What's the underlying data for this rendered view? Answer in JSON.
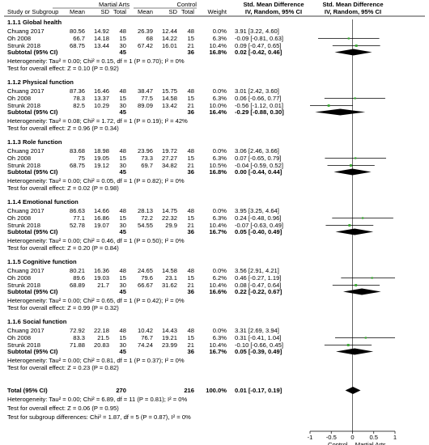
{
  "chart_data": {
    "type": "forest",
    "header": {
      "group1": "Martial Arts",
      "group2": "Control",
      "effect_title": "Std. Mean Difference",
      "effect_sub": "IV, Random, 95% CI",
      "plot_title": "Std. Mean Difference",
      "plot_sub": "IV, Random, 95% CI",
      "col_study": "Study or Subgroup",
      "col_mean": "Mean",
      "col_sd": "SD",
      "col_total": "Total",
      "col_weight": "Weight"
    },
    "x_axis": {
      "range": [
        -1,
        1
      ],
      "ticks": [
        -1,
        -0.5,
        0,
        0.5,
        1
      ],
      "tick_labels": [
        "-1",
        "-0.5",
        "0",
        "0.5",
        "1"
      ],
      "left_label": "Control",
      "right_label": "Martial Arts"
    },
    "subgroups": [
      {
        "title": "1.1.1 Global health",
        "studies": [
          {
            "name": "Chuang 2017",
            "m1": "80.56",
            "sd1": "14.92",
            "n1": "48",
            "m2": "26.39",
            "sd2": "12.44",
            "n2": "48",
            "weight": "0.0%",
            "ci": "3.91 [3.22, 4.60]",
            "est": 3.91,
            "lo": 3.22,
            "hi": 4.6
          },
          {
            "name": "Oh 2008",
            "m1": "66.7",
            "sd1": "14.18",
            "n1": "15",
            "m2": "68",
            "sd2": "14.22",
            "n2": "15",
            "weight": "6.3%",
            "ci": "-0.09 [-0.81, 0.63]",
            "est": -0.09,
            "lo": -0.81,
            "hi": 0.63
          },
          {
            "name": "Strunk 2018",
            "m1": "68.75",
            "sd1": "13.44",
            "n1": "30",
            "m2": "67.42",
            "sd2": "16.01",
            "n2": "21",
            "weight": "10.4%",
            "ci": "0.09 [-0.47, 0.65]",
            "est": 0.09,
            "lo": -0.47,
            "hi": 0.65
          }
        ],
        "subtotal": {
          "label": "Subtotal (95% CI)",
          "n1": "45",
          "n2": "36",
          "weight": "16.8%",
          "ci": "0.02 [-0.42, 0.46]",
          "est": 0.02,
          "lo": -0.42,
          "hi": 0.46
        },
        "heterogeneity": "Heterogeneity: Tau² = 0.00; Chi² = 0.15, df = 1 (P = 0.70); I² = 0%",
        "overall_test": "Test for overall effect: Z = 0.10 (P = 0.92)"
      },
      {
        "title": "1.1.2 Physical function",
        "studies": [
          {
            "name": "Chuang 2017",
            "m1": "87.36",
            "sd1": "16.46",
            "n1": "48",
            "m2": "38.47",
            "sd2": "15.75",
            "n2": "48",
            "weight": "0.0%",
            "ci": "3.01 [2.42, 3.60]",
            "est": 3.01,
            "lo": 2.42,
            "hi": 3.6
          },
          {
            "name": "Oh 2008",
            "m1": "78.3",
            "sd1": "13.37",
            "n1": "15",
            "m2": "77.5",
            "sd2": "14.58",
            "n2": "15",
            "weight": "6.3%",
            "ci": "0.06 [-0.66, 0.77]",
            "est": 0.06,
            "lo": -0.66,
            "hi": 0.77
          },
          {
            "name": "Strunk 2018",
            "m1": "82.5",
            "sd1": "10.29",
            "n1": "30",
            "m2": "89.09",
            "sd2": "13.42",
            "n2": "21",
            "weight": "10.0%",
            "ci": "-0.56 [-1.12, 0.01]",
            "est": -0.56,
            "lo": -1.12,
            "hi": 0.01
          }
        ],
        "subtotal": {
          "label": "Subtotal (95% CI)",
          "n1": "45",
          "n2": "36",
          "weight": "16.4%",
          "ci": "-0.29 [-0.88, 0.30]",
          "est": -0.29,
          "lo": -0.88,
          "hi": 0.3
        },
        "heterogeneity": "Heterogeneity: Tau² = 0.08; Chi² = 1.72, df = 1 (P = 0.19); I² = 42%",
        "overall_test": "Test for overall effect: Z = 0.96 (P = 0.34)"
      },
      {
        "title": "1.1.3 Role function",
        "studies": [
          {
            "name": "Chuang 2017",
            "m1": "83.68",
            "sd1": "18.98",
            "n1": "48",
            "m2": "23.96",
            "sd2": "19.72",
            "n2": "48",
            "weight": "0.0%",
            "ci": "3.06 [2.46, 3.66]",
            "est": 3.06,
            "lo": 2.46,
            "hi": 3.66
          },
          {
            "name": "Oh 2008",
            "m1": "75",
            "sd1": "19.05",
            "n1": "15",
            "m2": "73.3",
            "sd2": "27.27",
            "n2": "15",
            "weight": "6.3%",
            "ci": "0.07 [-0.65, 0.79]",
            "est": 0.07,
            "lo": -0.65,
            "hi": 0.79
          },
          {
            "name": "Strunk 2018",
            "m1": "68.75",
            "sd1": "19.12",
            "n1": "30",
            "m2": "69.7",
            "sd2": "34.82",
            "n2": "21",
            "weight": "10.5%",
            "ci": "-0.04 [-0.59, 0.52]",
            "est": -0.04,
            "lo": -0.59,
            "hi": 0.52
          }
        ],
        "subtotal": {
          "label": "Subtotal (95% CI)",
          "n1": "45",
          "n2": "36",
          "weight": "16.8%",
          "ci": "0.00 [-0.44, 0.44]",
          "est": 0.0,
          "lo": -0.44,
          "hi": 0.44
        },
        "heterogeneity": "Heterogeneity: Tau² = 0.00; Chi² = 0.05, df = 1 (P = 0.82); I² = 0%",
        "overall_test": "Test for overall effect: Z = 0.02 (P = 0.98)"
      },
      {
        "title": "1.1.4 Emotional function",
        "studies": [
          {
            "name": "Chuang 2017",
            "m1": "86.63",
            "sd1": "14.66",
            "n1": "48",
            "m2": "28.13",
            "sd2": "14.75",
            "n2": "48",
            "weight": "0.0%",
            "ci": "3.95 [3.25, 4.64]",
            "est": 3.95,
            "lo": 3.25,
            "hi": 4.64
          },
          {
            "name": "Oh 2008",
            "m1": "77.1",
            "sd1": "16.86",
            "n1": "15",
            "m2": "72.2",
            "sd2": "22.32",
            "n2": "15",
            "weight": "6.3%",
            "ci": "0.24 [-0.48, 0.96]",
            "est": 0.24,
            "lo": -0.48,
            "hi": 0.96
          },
          {
            "name": "Strunk 2018",
            "m1": "52.78",
            "sd1": "19.07",
            "n1": "30",
            "m2": "54.55",
            "sd2": "29.9",
            "n2": "21",
            "weight": "10.4%",
            "ci": "-0.07 [-0.63, 0.49]",
            "est": -0.07,
            "lo": -0.63,
            "hi": 0.49
          }
        ],
        "subtotal": {
          "label": "Subtotal (95% CI)",
          "n1": "45",
          "n2": "36",
          "weight": "16.7%",
          "ci": "0.05 [-0.40, 0.49]",
          "est": 0.05,
          "lo": -0.4,
          "hi": 0.49
        },
        "heterogeneity": "Heterogeneity: Tau² = 0.00; Chi² = 0.46, df = 1 (P = 0.50); I² = 0%",
        "overall_test": "Test for overall effect: Z = 0.20 (P = 0.84)"
      },
      {
        "title": "1.1.5 Cognitive function",
        "studies": [
          {
            "name": "Chuang 2017",
            "m1": "80.21",
            "sd1": "16.36",
            "n1": "48",
            "m2": "24.65",
            "sd2": "14.58",
            "n2": "48",
            "weight": "0.0%",
            "ci": "3.56 [2.91, 4.21]",
            "est": 3.56,
            "lo": 2.91,
            "hi": 4.21
          },
          {
            "name": "Oh 2008",
            "m1": "89.6",
            "sd1": "19.03",
            "n1": "15",
            "m2": "79.6",
            "sd2": "23.1",
            "n2": "15",
            "weight": "6.2%",
            "ci": "0.46 [-0.27, 1.19]",
            "est": 0.46,
            "lo": -0.27,
            "hi": 1.19
          },
          {
            "name": "Strunk 2018",
            "m1": "68.89",
            "sd1": "21.7",
            "n1": "30",
            "m2": "66.67",
            "sd2": "31.62",
            "n2": "21",
            "weight": "10.4%",
            "ci": "0.08 [-0.47, 0.64]",
            "est": 0.08,
            "lo": -0.47,
            "hi": 0.64
          }
        ],
        "subtotal": {
          "label": "Subtotal (95% CI)",
          "n1": "45",
          "n2": "36",
          "weight": "16.6%",
          "ci": "0.22 [-0.22, 0.67]",
          "est": 0.22,
          "lo": -0.22,
          "hi": 0.67
        },
        "heterogeneity": "Heterogeneity: Tau² = 0.00; Chi² = 0.65, df = 1 (P = 0.42); I² = 0%",
        "overall_test": "Test for overall effect: Z = 0.99 (P = 0.32)"
      },
      {
        "title": "1.1.6 Social function",
        "studies": [
          {
            "name": "Chuang 2017",
            "m1": "72.92",
            "sd1": "22.18",
            "n1": "48",
            "m2": "10.42",
            "sd2": "14.43",
            "n2": "48",
            "weight": "0.0%",
            "ci": "3.31 [2.69, 3.94]",
            "est": 3.31,
            "lo": 2.69,
            "hi": 3.94
          },
          {
            "name": "Oh 2008",
            "m1": "83.3",
            "sd1": "21.5",
            "n1": "15",
            "m2": "76.7",
            "sd2": "19.21",
            "n2": "15",
            "weight": "6.3%",
            "ci": "0.31 [-0.41, 1.04]",
            "est": 0.31,
            "lo": -0.41,
            "hi": 1.04
          },
          {
            "name": "Strunk 2018",
            "m1": "71.88",
            "sd1": "20.83",
            "n1": "30",
            "m2": "74.24",
            "sd2": "23.99",
            "n2": "21",
            "weight": "10.4%",
            "ci": "-0.10 [-0.66, 0.45]",
            "est": -0.1,
            "lo": -0.66,
            "hi": 0.45
          }
        ],
        "subtotal": {
          "label": "Subtotal (95% CI)",
          "n1": "45",
          "n2": "36",
          "weight": "16.7%",
          "ci": "0.05 [-0.39, 0.49]",
          "est": 0.05,
          "lo": -0.39,
          "hi": 0.49
        },
        "heterogeneity": "Heterogeneity: Tau² = 0.00; Chi² = 0.81, df = 1 (P = 0.37); I² = 0%",
        "overall_test": "Test for overall effect: Z = 0.23 (P = 0.82)"
      }
    ],
    "total": {
      "label": "Total (95% CI)",
      "n1": "270",
      "n2": "216",
      "weight": "100.0%",
      "ci": "0.01 [-0.17, 0.19]",
      "est": 0.01,
      "lo": -0.17,
      "hi": 0.19
    },
    "footer": [
      "Heterogeneity: Tau² = 0.00; Chi² = 6.89, df = 11 (P = 0.81); I² = 0%",
      "Test for overall effect: Z = 0.06 (P = 0.95)",
      "Test for subgroup differences: Chi² = 1.87, df = 5 (P = 0.87), I² = 0%"
    ],
    "colors": {
      "study_marker": "#3aa832",
      "diamond": "#000000",
      "line": "#000000"
    }
  }
}
